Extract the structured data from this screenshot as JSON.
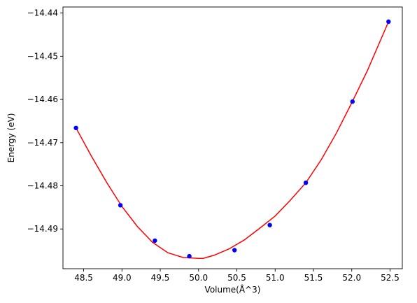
{
  "chart_data": {
    "type": "scatter",
    "xlabel": "Volume(Å^3)",
    "ylabel": "Energy (eV)",
    "xlim": [
      48.23,
      52.66
    ],
    "ylim": [
      -14.4992,
      -14.4386
    ],
    "x_ticks": [
      48.5,
      49.0,
      49.5,
      50.0,
      50.5,
      51.0,
      51.5,
      52.0,
      52.5
    ],
    "x_tick_labels": [
      "48.5",
      "49.0",
      "49.5",
      "50.0",
      "50.5",
      "51.0",
      "51.5",
      "52.0",
      "52.5"
    ],
    "y_ticks": [
      -14.44,
      -14.45,
      -14.46,
      -14.47,
      -14.48,
      -14.49
    ],
    "y_tick_labels": [
      "−14.44",
      "−14.45",
      "−14.46",
      "−14.47",
      "−14.48",
      "−14.49"
    ],
    "grid": false,
    "series": [
      {
        "kind": "points",
        "color": "#0000ff",
        "x": [
          48.4,
          48.98,
          49.43,
          49.88,
          50.47,
          50.93,
          51.4,
          52.01,
          52.48
        ],
        "y": [
          -14.4666,
          -14.4845,
          -14.4927,
          -14.4963,
          -14.4949,
          -14.4891,
          -14.4793,
          -14.4605,
          -14.442
        ]
      },
      {
        "kind": "fit-curve",
        "color": "#ff0000",
        "x": [
          48.4,
          48.6,
          48.8,
          49.0,
          49.2,
          49.4,
          49.6,
          49.8,
          50.0,
          50.06,
          50.2,
          50.4,
          50.6,
          50.8,
          51.0,
          51.2,
          51.4,
          51.6,
          51.8,
          52.0,
          52.2,
          52.48
        ],
        "y": [
          -14.4666,
          -14.4731,
          -14.4792,
          -14.4848,
          -14.4894,
          -14.4931,
          -14.4955,
          -14.4966,
          -14.4968,
          -14.4968,
          -14.4961,
          -14.4946,
          -14.4925,
          -14.4898,
          -14.487,
          -14.4833,
          -14.4793,
          -14.474,
          -14.4678,
          -14.4608,
          -14.4535,
          -14.442
        ]
      }
    ]
  }
}
